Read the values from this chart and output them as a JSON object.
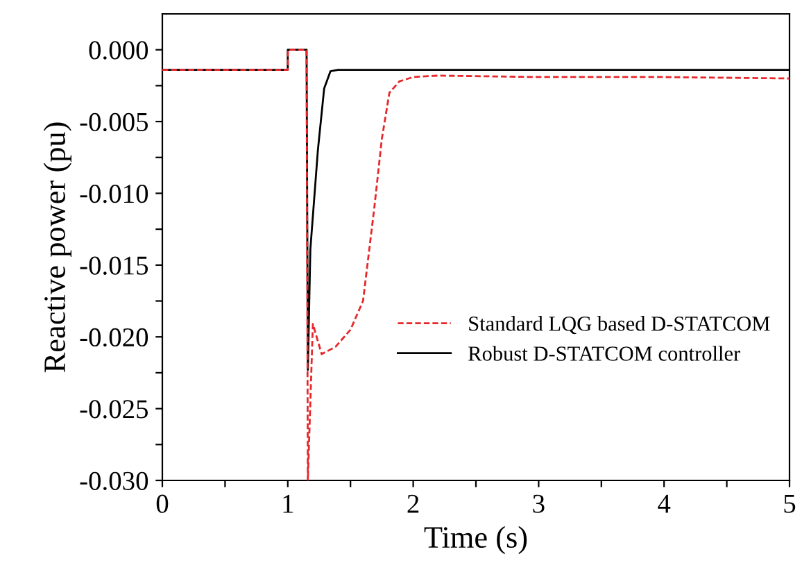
{
  "chart_data": {
    "type": "line",
    "xlabel": "Time (s)",
    "ylabel": "Reactive power (pu)",
    "xlim": [
      0,
      5
    ],
    "ylim": [
      -0.03,
      0.0025
    ],
    "xticks": [
      0,
      {
        "value": 0.5,
        "label": null
      },
      1,
      {
        "value": 1.5,
        "label": null
      },
      2,
      {
        "value": 2.5,
        "label": null
      },
      3,
      {
        "value": 3.5,
        "label": null
      },
      4,
      {
        "value": 4.5,
        "label": null
      },
      5
    ],
    "yticks": [
      {
        "value": -0.03,
        "label": "-0.030"
      },
      {
        "value": -0.0275,
        "label": null
      },
      {
        "value": -0.025,
        "label": "-0.025"
      },
      {
        "value": -0.0225,
        "label": null
      },
      {
        "value": -0.02,
        "label": "-0.020"
      },
      {
        "value": -0.0175,
        "label": null
      },
      {
        "value": -0.015,
        "label": "-0.015"
      },
      {
        "value": -0.0125,
        "label": null
      },
      {
        "value": -0.01,
        "label": "-0.010"
      },
      {
        "value": -0.0075,
        "label": null
      },
      {
        "value": -0.005,
        "label": "-0.005"
      },
      {
        "value": -0.0025,
        "label": null
      },
      {
        "value": 0,
        "label": "0.000"
      }
    ],
    "grid": false,
    "legend": "right",
    "series": [
      {
        "name": "Standard LQG based D-STATCOM",
        "color": "#e8272a",
        "line_style": "dashed",
        "x": [
          0,
          1.0,
          1.0,
          1.15,
          1.16,
          1.2,
          1.27,
          1.38,
          1.5,
          1.6,
          1.69,
          1.75,
          1.81,
          1.89,
          2.0,
          2.2,
          3,
          4,
          5
        ],
        "values": [
          -0.0014,
          -0.0014,
          0,
          0,
          -0.03,
          -0.0191,
          -0.0212,
          -0.0207,
          -0.0195,
          -0.0175,
          -0.011,
          -0.0062,
          -0.003,
          -0.0022,
          -0.0019,
          -0.0018,
          -0.0019,
          -0.0019,
          -0.002
        ]
      },
      {
        "name": "Robust D-STATCOM controller",
        "color": "#000000",
        "line_style": "solid",
        "x": [
          0,
          1.0,
          1.0,
          1.15,
          1.16,
          1.18,
          1.24,
          1.29,
          1.34,
          1.4,
          2,
          3,
          4,
          5
        ],
        "values": [
          -0.0014,
          -0.0014,
          0,
          0,
          -0.0223,
          -0.0139,
          -0.007,
          -0.0027,
          -0.0015,
          -0.0014,
          -0.0014,
          -0.0014,
          -0.0014,
          -0.0014
        ]
      }
    ]
  }
}
